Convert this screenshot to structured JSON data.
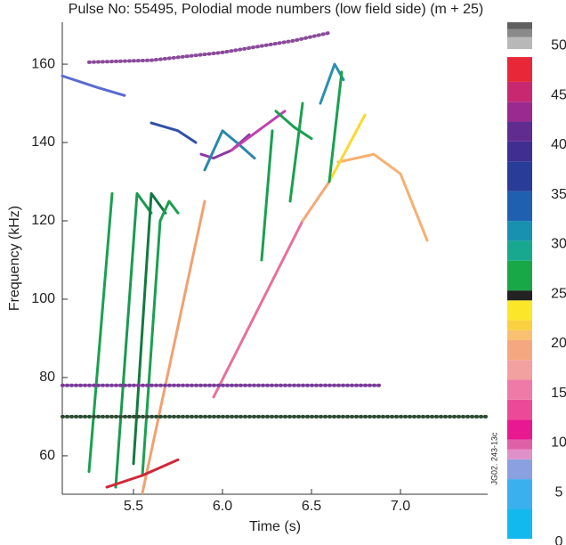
{
  "chart_data": {
    "type": "spectrogram",
    "title": "Pulse No: 55495, Polodial mode numbers (low field side) (m + 25)",
    "x_label": "Time (s)",
    "y_label": "Frequency (kHz)",
    "annotation": "JG02. 243-13c",
    "xlim": [
      5.1,
      7.49
    ],
    "ylim": [
      50.2,
      170.7
    ],
    "xticks": [
      5.5,
      {
        "value": 6,
        "label": "6.0"
      },
      6.5,
      {
        "value": 7,
        "label": "7.0"
      }
    ],
    "yticks": [
      60,
      80,
      100,
      120,
      140,
      160
    ],
    "series": [
      {
        "color": "#8a4a9a",
        "dotted": true,
        "x": [
          5.25,
          5.6,
          6.0,
          6.4,
          6.6
        ],
        "y": [
          160.5,
          161,
          163,
          166,
          168
        ]
      },
      {
        "color": "#5a6ad0",
        "dotted": false,
        "x": [
          5.1,
          5.3,
          5.45
        ],
        "y": [
          157,
          154,
          152
        ]
      },
      {
        "color": "#3050a8",
        "dotted": false,
        "x": [
          5.6,
          5.75,
          5.85
        ],
        "y": [
          145,
          143,
          140
        ]
      },
      {
        "color": "#8a3aa0",
        "dotted": false,
        "x": [
          5.88,
          5.95,
          6.05,
          6.15
        ],
        "y": [
          137,
          136,
          138,
          142
        ]
      },
      {
        "color": "#2a88a8",
        "dotted": false,
        "x": [
          5.9,
          6.0,
          6.08,
          6.18
        ],
        "y": [
          133,
          143,
          140,
          136
        ]
      },
      {
        "color": "#c040b0",
        "dotted": false,
        "x": [
          6.05,
          6.2,
          6.35
        ],
        "y": [
          138,
          143,
          148
        ]
      },
      {
        "color": "#1aa050",
        "dotted": false,
        "x": [
          6.3,
          6.4,
          6.5
        ],
        "y": [
          148,
          144,
          141
        ]
      },
      {
        "color": "#2a90b0",
        "dotted": false,
        "x": [
          6.55,
          6.63,
          6.68
        ],
        "y": [
          150,
          160,
          156
        ]
      },
      {
        "color": "#1aa050",
        "dotted": false,
        "x": [
          5.25,
          5.38
        ],
        "y": [
          56,
          127
        ]
      },
      {
        "color": "#1a9a50",
        "dotted": false,
        "x": [
          5.4,
          5.52,
          5.6
        ],
        "y": [
          52,
          127,
          122
        ]
      },
      {
        "color": "#127a40",
        "dotted": false,
        "x": [
          5.5,
          5.6,
          5.68
        ],
        "y": [
          58,
          127,
          122
        ]
      },
      {
        "color": "#1aa050",
        "dotted": false,
        "x": [
          5.55,
          5.65,
          5.7,
          5.75
        ],
        "y": [
          55,
          120,
          125,
          122
        ]
      },
      {
        "color": "#f2a070",
        "dotted": false,
        "x": [
          5.55,
          5.9
        ],
        "y": [
          50.5,
          125
        ]
      },
      {
        "color": "#e8709c",
        "dotted": false,
        "x": [
          5.95,
          6.45
        ],
        "y": [
          75,
          120
        ]
      },
      {
        "color": "#f5a878",
        "dotted": false,
        "x": [
          6.45,
          6.6
        ],
        "y": [
          120,
          130
        ]
      },
      {
        "color": "#f6b070",
        "dotted": false,
        "x": [
          6.65,
          6.85,
          7.0,
          7.15
        ],
        "y": [
          135,
          137,
          132,
          115
        ]
      },
      {
        "color": "#fbd830",
        "dotted": false,
        "x": [
          6.6,
          6.8
        ],
        "y": [
          130,
          147
        ]
      },
      {
        "color": "#1aa050",
        "dotted": false,
        "x": [
          6.22,
          6.28
        ],
        "y": [
          110,
          143
        ]
      },
      {
        "color": "#1aa050",
        "dotted": false,
        "x": [
          6.38,
          6.45
        ],
        "y": [
          125,
          150
        ]
      },
      {
        "color": "#1aa050",
        "dotted": false,
        "x": [
          6.6,
          6.67
        ],
        "y": [
          130,
          158
        ]
      },
      {
        "color": "#7a3a9a",
        "dotted": true,
        "x": [
          5.1,
          6.9
        ],
        "y": [
          78,
          78
        ]
      },
      {
        "color": "#2a4a30",
        "dotted": true,
        "x": [
          5.1,
          7.49
        ],
        "y": [
          70,
          70
        ]
      },
      {
        "color": "#d02838",
        "dotted": false,
        "x": [
          5.35,
          5.55,
          5.75
        ],
        "y": [
          52,
          55,
          59
        ]
      }
    ],
    "colorbar": {
      "lim": [
        0,
        52
      ],
      "ticks": [
        0,
        5,
        10,
        15,
        20,
        25,
        30,
        35,
        40,
        45,
        50
      ],
      "stops": [
        {
          "value": 0,
          "color": "#12b9ef"
        },
        {
          "value": 3,
          "color": "#3ab0ee"
        },
        {
          "value": 6,
          "color": "#8aa0e0"
        },
        {
          "value": 8,
          "color": "#e090c8"
        },
        {
          "value": 9,
          "color": "#e060a8"
        },
        {
          "value": 10,
          "color": "#e81890"
        },
        {
          "value": 12,
          "color": "#ec4a98"
        },
        {
          "value": 14,
          "color": "#ef7aa8"
        },
        {
          "value": 16,
          "color": "#f2a0a0"
        },
        {
          "value": 18,
          "color": "#f5a880"
        },
        {
          "value": 20,
          "color": "#f8c070"
        },
        {
          "value": 21,
          "color": "#fad040"
        },
        {
          "value": 22,
          "color": "#fbe62a"
        },
        {
          "value": 24,
          "color": "#222222"
        },
        {
          "value": 25,
          "color": "#18a848"
        },
        {
          "value": 28,
          "color": "#18a890"
        },
        {
          "value": 30,
          "color": "#1890b0"
        },
        {
          "value": 32,
          "color": "#2060b0"
        },
        {
          "value": 35,
          "color": "#283c98"
        },
        {
          "value": 38,
          "color": "#402e90"
        },
        {
          "value": 40,
          "color": "#602c90"
        },
        {
          "value": 42,
          "color": "#9a2a90"
        },
        {
          "value": 44,
          "color": "#c82870"
        },
        {
          "value": 46,
          "color": "#e82838"
        },
        {
          "value": 48.5,
          "color": "#ffffff"
        },
        {
          "value": 49.3,
          "color": "#b8b8b8"
        },
        {
          "value": 50.5,
          "color": "#8a8a8a"
        },
        {
          "value": 51.3,
          "color": "#606060"
        }
      ]
    }
  }
}
